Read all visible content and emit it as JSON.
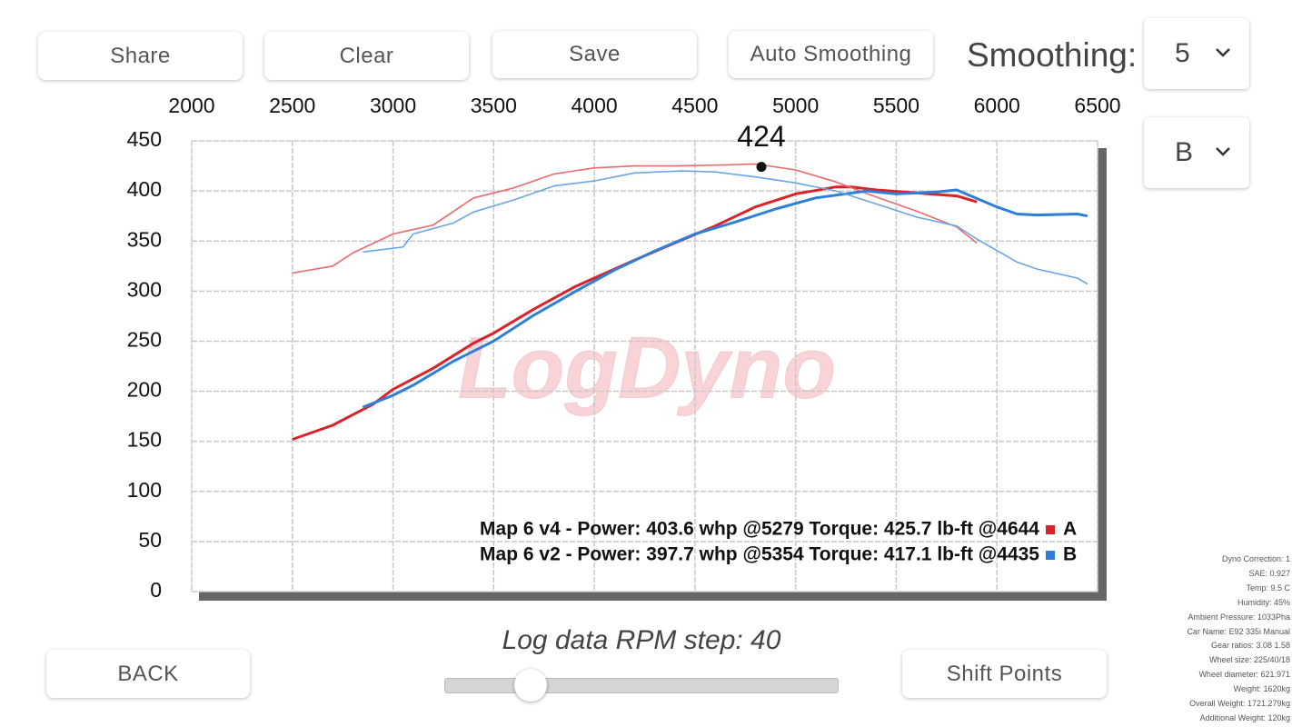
{
  "toolbar": {
    "buttons": [
      "Share",
      "Clear",
      "Save",
      "Auto Smoothing"
    ],
    "smoothing_label": "Smoothing:",
    "smoothing_value": "5",
    "run_select": "B"
  },
  "chart_data": {
    "type": "line",
    "xlim": [
      2000,
      6500
    ],
    "xticks": [
      2000,
      2500,
      3000,
      3500,
      4000,
      4500,
      5000,
      5500,
      6000,
      6500
    ],
    "ylim": [
      0,
      450
    ],
    "yticks": [
      0,
      50,
      100,
      150,
      200,
      250,
      300,
      350,
      400,
      450
    ],
    "grid": true,
    "watermark": "LogDyno",
    "series": [
      {
        "color": "#d8232a",
        "width": 3,
        "x": [
          2500,
          2700,
          2900,
          3000,
          3200,
          3400,
          3500,
          3700,
          3900,
          4000,
          4200,
          4400,
          4600,
          4800,
          5000,
          5200,
          5279,
          5400,
          5600,
          5800,
          5900
        ],
        "values": [
          152,
          166,
          187,
          202,
          223,
          248,
          258,
          282,
          304,
          313,
          331,
          348,
          365,
          384,
          397,
          404,
          404,
          401,
          398,
          395,
          389
        ]
      },
      {
        "color": "#e86a6e",
        "width": 1.6,
        "x": [
          2500,
          2700,
          2800,
          3000,
          3200,
          3400,
          3600,
          3800,
          4000,
          4200,
          4400,
          4644,
          4800,
          5000,
          5200,
          5400,
          5600,
          5800,
          5900
        ],
        "values": [
          318,
          325,
          338,
          357,
          366,
          393,
          403,
          417,
          423,
          425,
          425,
          426,
          427,
          421,
          409,
          394,
          380,
          364,
          348
        ]
      },
      {
        "color": "#2f7fd6",
        "width": 3,
        "x": [
          2850,
          3000,
          3100,
          3300,
          3500,
          3700,
          3900,
          4100,
          4300,
          4500,
          4700,
          4900,
          5100,
          5354,
          5500,
          5700,
          5800,
          6000,
          6100,
          6200,
          6400,
          6450
        ],
        "values": [
          184,
          196,
          206,
          230,
          250,
          276,
          299,
          321,
          340,
          357,
          369,
          382,
          393,
          400,
          397,
          399,
          401,
          384,
          377,
          376,
          377,
          375
        ]
      },
      {
        "color": "#6aa6e6",
        "width": 1.6,
        "x": [
          2850,
          3050,
          3100,
          3300,
          3400,
          3600,
          3800,
          4000,
          4200,
          4435,
          4600,
          4800,
          5000,
          5200,
          5400,
          5600,
          5800,
          5900,
          6100,
          6200,
          6400,
          6450
        ],
        "values": [
          339,
          344,
          357,
          368,
          379,
          391,
          405,
          410,
          418,
          420,
          419,
          414,
          408,
          400,
          387,
          374,
          365,
          352,
          329,
          322,
          313,
          307
        ]
      }
    ],
    "annotation": {
      "x": 4830,
      "y": 424
    },
    "legend": [
      {
        "text": "Map 6 v4 - Power: 403.6 whp @5279 Torque: 425.7 lb-ft @4644",
        "name": "A",
        "color": "#d8232a"
      },
      {
        "text": "Map 6 v2 - Power: 397.7 whp @5354 Torque: 417.1 lb-ft @4435",
        "name": "B",
        "color": "#2f7fd6"
      }
    ]
  },
  "footer": {
    "step_label": "Log data RPM step: 40",
    "buttons": [
      "BACK",
      "Shift Points"
    ]
  },
  "info": [
    "Dyno Correction: 1",
    "SAE: 0.927",
    "Temp: 9.5 C",
    "Humidity: 45%",
    "Ambient Pressure: 1033Pha",
    "Car Name: E92 335i Manual",
    "Gear ratios: 3.08 1.58",
    "Wheel size: 225/40/18",
    "Wheel diameter: 621.971",
    "Weight: 1620kg",
    "Overall Weight: 1721.279kg",
    "Additional Weight: 120kg"
  ]
}
